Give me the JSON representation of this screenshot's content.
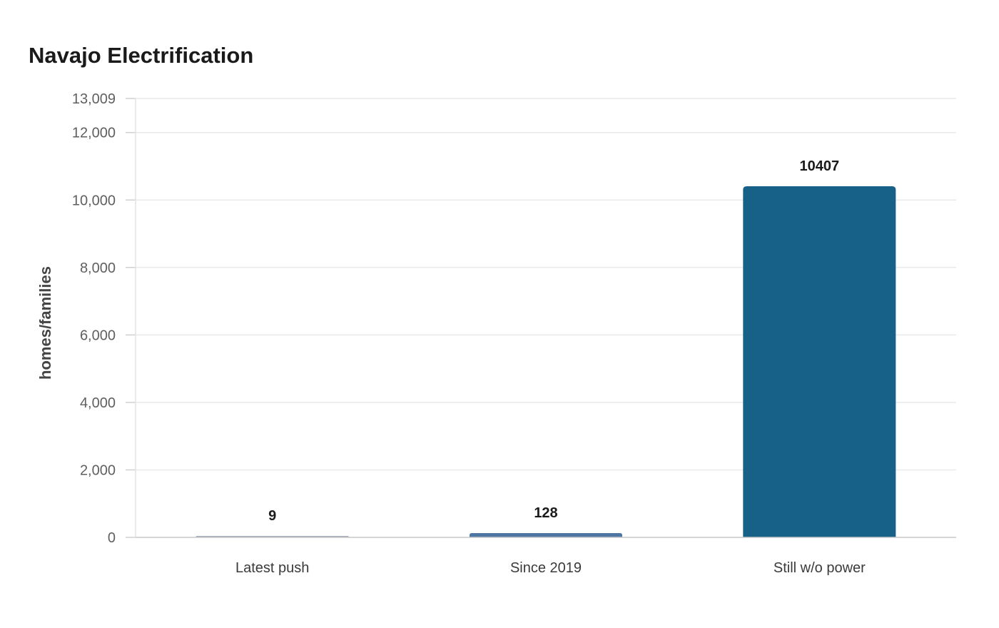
{
  "chart_data": {
    "type": "bar",
    "title": "Navajo Electrification",
    "xlabel": "",
    "ylabel": "homes/families",
    "categories": [
      "Latest push",
      "Since 2019",
      "Still w/o power"
    ],
    "values": [
      9,
      128,
      10407
    ],
    "data_labels": [
      "9",
      "128",
      "10407"
    ],
    "ylim": [
      0,
      13009
    ],
    "y_ticks": [
      0,
      2000,
      4000,
      6000,
      8000,
      10000,
      12000,
      13009
    ],
    "y_tick_labels": [
      "0",
      "2,000",
      "4,000",
      "6,000",
      "8,000",
      "10,000",
      "12,000",
      "13,009"
    ],
    "bar_colors": [
      "#9fa8b9",
      "#4e76a3",
      "#176087"
    ],
    "grid": true,
    "legend": "none"
  }
}
